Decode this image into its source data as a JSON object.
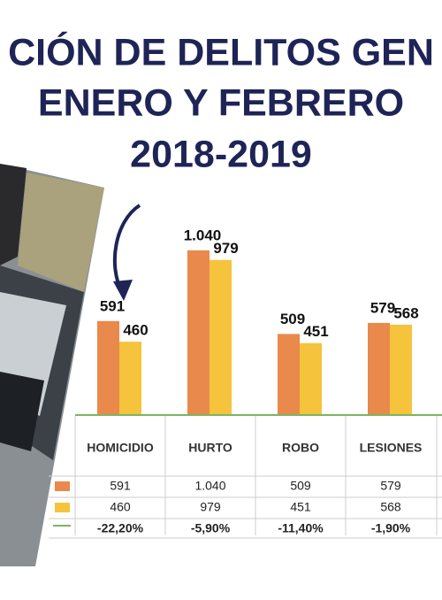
{
  "chart_data": {
    "type": "bar",
    "title": [
      "CIÓN DE DELITOS GEN",
      "ENERO Y FEBRERO",
      "2018-2019"
    ],
    "categories": [
      "HOMICIDIO",
      "HURTO",
      "ROBO",
      "LESIONES"
    ],
    "series": [
      {
        "color": "#e9894b",
        "values": [
          591,
          1040,
          509,
          579
        ],
        "value_labels": [
          "591",
          "1.040",
          "509",
          "579"
        ]
      },
      {
        "color": "#f6c33c",
        "values": [
          460,
          979,
          451,
          568
        ],
        "value_labels": [
          "460",
          "979",
          "451",
          "568"
        ]
      }
    ],
    "change": {
      "color": "#7bb661",
      "values": [
        -22.2,
        -5.9,
        -11.4,
        -1.9
      ],
      "value_labels": [
        "-22,20%",
        "-5,90%",
        "-11,40%",
        "-1,90%"
      ]
    }
  }
}
